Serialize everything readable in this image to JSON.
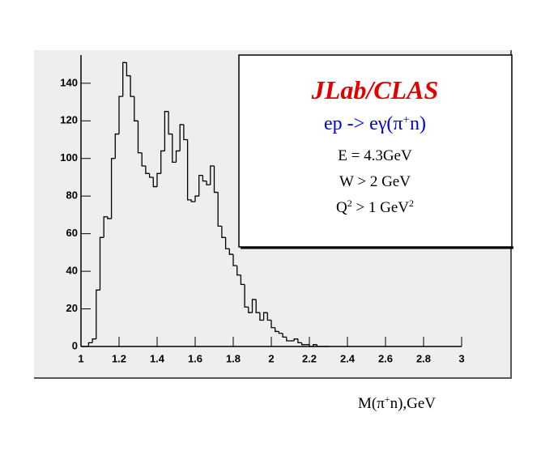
{
  "chart_data": {
    "type": "histogram",
    "bins": [
      1.0,
      1.02,
      1.04,
      1.06,
      1.08,
      1.1,
      1.12,
      1.14,
      1.16,
      1.18,
      1.2,
      1.22,
      1.24,
      1.26,
      1.28,
      1.3,
      1.32,
      1.34,
      1.36,
      1.38,
      1.4,
      1.42,
      1.44,
      1.46,
      1.48,
      1.5,
      1.52,
      1.54,
      1.56,
      1.58,
      1.6,
      1.62,
      1.64,
      1.66,
      1.68,
      1.7,
      1.72,
      1.74,
      1.76,
      1.78,
      1.8,
      1.82,
      1.84,
      1.86,
      1.88,
      1.9,
      1.92,
      1.94,
      1.96,
      1.98,
      2.0,
      2.02,
      2.04,
      2.06,
      2.08,
      2.1,
      2.12,
      2.14,
      2.16,
      2.18,
      2.2,
      2.22,
      2.24,
      2.26,
      2.28,
      2.3
    ],
    "values": [
      0,
      0,
      2,
      4,
      30,
      58,
      69,
      68,
      100,
      113,
      133,
      151,
      144,
      133,
      120,
      103,
      96,
      92,
      90,
      85,
      92,
      104,
      125,
      113,
      98,
      104,
      118,
      110,
      78,
      77,
      80,
      91,
      88,
      86,
      96,
      82,
      64,
      58,
      52,
      49,
      43,
      38,
      33,
      21,
      18,
      25,
      18,
      14,
      18,
      14,
      10,
      8,
      7,
      5,
      3,
      3,
      4,
      2,
      1,
      1,
      0,
      1,
      0,
      0,
      0
    ],
    "color": "#000000",
    "xlim": [
      1,
      3
    ],
    "ylim": [
      0,
      155
    ],
    "xticks": [
      1,
      1.2,
      1.4,
      1.6,
      1.8,
      2,
      2.2,
      2.4,
      2.6,
      2.8,
      3
    ],
    "yticks": [
      0,
      20,
      40,
      60,
      80,
      100,
      120,
      140
    ],
    "grid": false,
    "x_label": [
      "M(π",
      "+",
      "n),GeV"
    ],
    "legend_box": {
      "title": "JLab/CLAS",
      "reaction": [
        "ep -> eγ(π",
        "+",
        "n)"
      ],
      "lines": [
        [
          "E = 4.3GeV"
        ],
        [
          "W > 2 GeV"
        ],
        [
          "Q",
          "2",
          " > 1 GeV",
          "2"
        ]
      ]
    }
  }
}
